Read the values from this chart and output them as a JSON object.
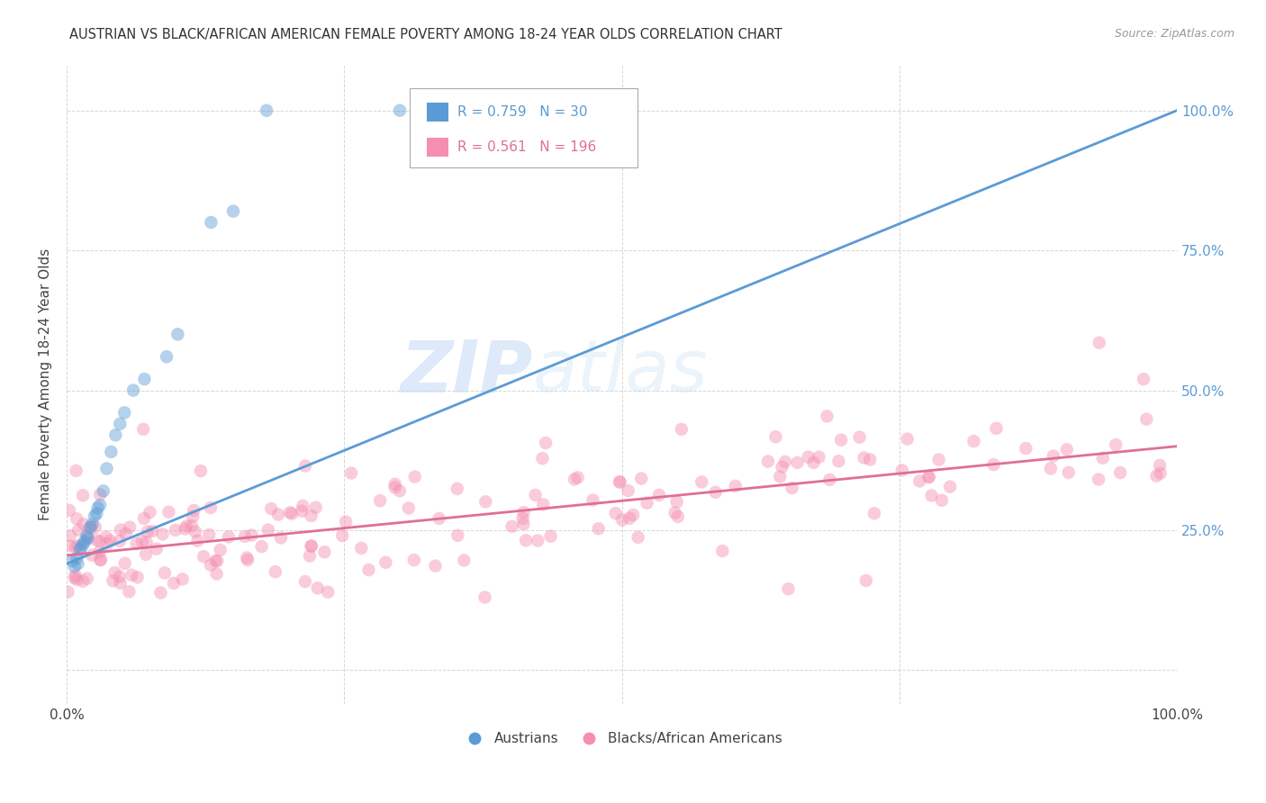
{
  "title": "AUSTRIAN VS BLACK/AFRICAN AMERICAN FEMALE POVERTY AMONG 18-24 YEAR OLDS CORRELATION CHART",
  "source": "Source: ZipAtlas.com",
  "ylabel": "Female Poverty Among 18-24 Year Olds",
  "xlim": [
    0,
    1.0
  ],
  "ylim": [
    -0.06,
    1.08
  ],
  "blue_color": "#5b9bd5",
  "pink_color": "#f48fb1",
  "pink_line_color": "#e07090",
  "blue_R": 0.759,
  "blue_N": 30,
  "pink_R": 0.561,
  "pink_N": 196,
  "legend_austrians": "Austrians",
  "legend_blacks": "Blacks/African Americans",
  "background_color": "#ffffff",
  "grid_color": "#cccccc",
  "blue_scatter_x": [
    0.005,
    0.007,
    0.009,
    0.01,
    0.012,
    0.013,
    0.015,
    0.016,
    0.018,
    0.019,
    0.021,
    0.023,
    0.025,
    0.027,
    0.028,
    0.03,
    0.033,
    0.036,
    0.04,
    0.044,
    0.048,
    0.052,
    0.06,
    0.07,
    0.09,
    0.1,
    0.13,
    0.15,
    0.18,
    0.3
  ],
  "blue_scatter_y": [
    0.195,
    0.185,
    0.2,
    0.19,
    0.215,
    0.22,
    0.225,
    0.23,
    0.24,
    0.235,
    0.255,
    0.26,
    0.275,
    0.28,
    0.29,
    0.295,
    0.32,
    0.36,
    0.39,
    0.42,
    0.44,
    0.46,
    0.5,
    0.52,
    0.56,
    0.6,
    0.8,
    0.82,
    1.0,
    1.0
  ],
  "blue_line_x0": 0.0,
  "blue_line_y0": 0.19,
  "blue_line_x1": 1.0,
  "blue_line_y1": 1.0,
  "pink_line_x0": 0.0,
  "pink_line_y0": 0.205,
  "pink_line_x1": 1.0,
  "pink_line_y1": 0.4,
  "watermark_zip_color": "#c8ddf5",
  "watermark_atlas_color": "#c8ddf5"
}
